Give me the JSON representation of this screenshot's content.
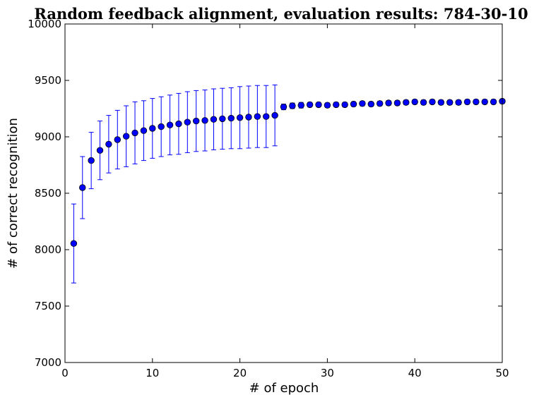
{
  "chart_data": {
    "type": "scatter",
    "title": "Random feedback alignment, evaluation results: 784-30-10",
    "xlabel": "# of epoch",
    "ylabel": "# of correct recognition",
    "xlim": [
      0,
      50
    ],
    "ylim": [
      7000,
      10000
    ],
    "xticks": [
      0,
      10,
      20,
      30,
      40,
      50
    ],
    "yticks": [
      7000,
      7500,
      8000,
      8500,
      9000,
      9500,
      10000
    ],
    "grid": false,
    "marker_color": "#0000ff",
    "errorbar_color": "#0000ff",
    "series": [
      {
        "x": [
          1,
          2,
          3,
          4,
          5,
          6,
          7,
          8,
          9,
          10,
          11,
          12,
          13,
          14,
          15,
          16,
          17,
          18,
          19,
          20,
          21,
          22,
          23,
          24,
          25,
          26,
          27,
          28,
          29,
          30,
          31,
          32,
          33,
          34,
          35,
          36,
          37,
          38,
          39,
          40,
          41,
          42,
          43,
          44,
          45,
          46,
          47,
          48,
          49,
          50
        ],
        "y": [
          8055,
          8550,
          8790,
          8880,
          8935,
          8975,
          9005,
          9035,
          9055,
          9075,
          9090,
          9105,
          9115,
          9130,
          9140,
          9145,
          9155,
          9160,
          9165,
          9170,
          9175,
          9180,
          9180,
          9190,
          9265,
          9275,
          9280,
          9285,
          9285,
          9280,
          9285,
          9285,
          9290,
          9295,
          9290,
          9295,
          9300,
          9300,
          9305,
          9310,
          9305,
          9310,
          9305,
          9305,
          9305,
          9310,
          9310,
          9310,
          9310,
          9315
        ],
        "err": [
          350,
          275,
          250,
          260,
          255,
          260,
          270,
          275,
          265,
          265,
          265,
          265,
          270,
          270,
          270,
          270,
          270,
          270,
          270,
          275,
          275,
          275,
          275,
          270,
          25,
          25,
          25,
          20,
          20,
          20,
          20,
          20,
          20,
          20,
          20,
          20,
          20,
          20,
          20,
          20,
          20,
          20,
          20,
          20,
          20,
          20,
          20,
          20,
          20,
          20
        ]
      }
    ]
  }
}
